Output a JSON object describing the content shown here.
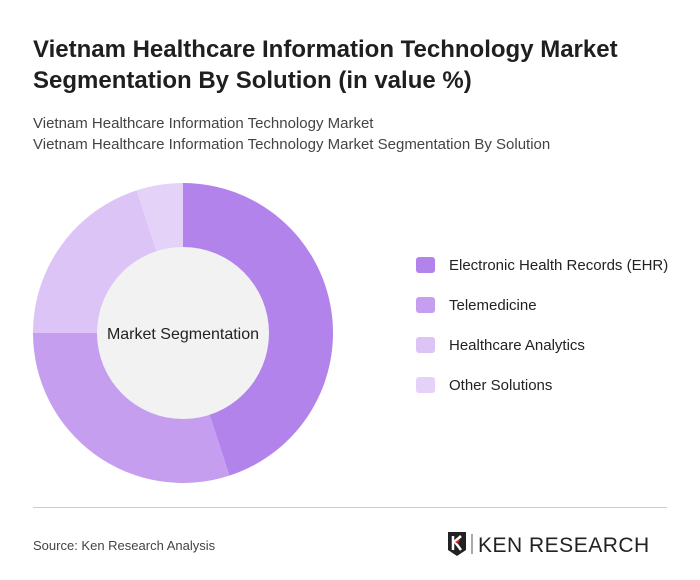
{
  "title": "Vietnam Healthcare Information Technology Market Segmentation By Solution (in value %)",
  "subtitle1": "Vietnam Healthcare Information Technology Market",
  "subtitle2": "Vietnam Healthcare Information Technology Market Segmentation By Solution",
  "source": "Source: Ken Research Analysis",
  "logo_text": "KEN RESEARCH",
  "chart_data": {
    "type": "pie",
    "donut": true,
    "center_label": "Market Segmentation",
    "legend_placement": "right",
    "categories": [
      "Electronic Health Records (EHR)",
      "Telemedicine",
      "Healthcare Analytics",
      "Other Solutions"
    ],
    "values": [
      45,
      30,
      20,
      5
    ],
    "colors": [
      "#b383ec",
      "#c69ef0",
      "#dcc4f7",
      "#e4d2f9"
    ]
  }
}
